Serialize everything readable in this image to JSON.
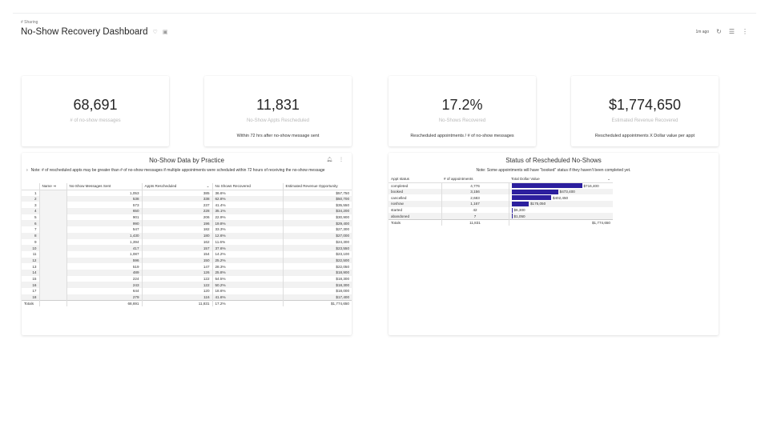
{
  "header": {
    "breadcrumb": "# Sharing",
    "title": "No-Show Recovery Dashboard",
    "updated": "1m ago"
  },
  "kpis": [
    {
      "value": "68,691",
      "label": "# of no-show messages",
      "sub": ""
    },
    {
      "value": "11,831",
      "label": "No-Show Appts Rescheduled",
      "sub": "Within 72 hrs after no-show message sent"
    },
    {
      "value": "17.2%",
      "label": "No-Shows Recovered",
      "sub": "Rescheduled appointments / # of no-show messages"
    },
    {
      "value": "$1,774,650",
      "label": "Estimated Revenue Recovered",
      "sub": "Rescheduled appointments X Dollar value per appt"
    }
  ],
  "practice_table": {
    "title": "No-Show Data by Practice",
    "note": "Note: # of rescheduled appts may be greater than # of no-show messages if multiple appointments were scheduled within 72 hours of receiving the no-show message",
    "columns": [
      "Name",
      "No-Show Messages Sent",
      "Appts Rescheduled",
      "No Shows Recovered",
      "Estimated Revenue Opportunity"
    ],
    "rows": [
      [
        "1",
        "1,053",
        "385",
        "36.6%",
        "$57,750"
      ],
      [
        "2",
        "538",
        "338",
        "62.8%",
        "$50,700"
      ],
      [
        "3",
        "573",
        "237",
        "41.4%",
        "$35,550"
      ],
      [
        "4",
        "650",
        "228",
        "35.1%",
        "$34,200"
      ],
      [
        "5",
        "901",
        "206",
        "22.9%",
        "$30,900"
      ],
      [
        "6",
        "990",
        "196",
        "19.8%",
        "$29,400"
      ],
      [
        "7",
        "547",
        "182",
        "33.3%",
        "$27,300"
      ],
      [
        "8",
        "1,430",
        "180",
        "12.6%",
        "$27,000"
      ],
      [
        "9",
        "1,394",
        "162",
        "11.6%",
        "$24,300"
      ],
      [
        "10",
        "417",
        "157",
        "37.6%",
        "$23,550"
      ],
      [
        "11",
        "1,087",
        "154",
        "14.2%",
        "$23,100"
      ],
      [
        "12",
        "596",
        "150",
        "25.2%",
        "$22,500"
      ],
      [
        "13",
        "519",
        "147",
        "28.3%",
        "$22,050"
      ],
      [
        "14",
        "489",
        "126",
        "25.8%",
        "$18,900"
      ],
      [
        "15",
        "224",
        "122",
        "54.5%",
        "$18,300"
      ],
      [
        "16",
        "243",
        "122",
        "50.2%",
        "$18,300"
      ],
      [
        "17",
        "644",
        "120",
        "18.6%",
        "$18,000"
      ],
      [
        "18",
        "279",
        "116",
        "41.6%",
        "$17,400"
      ]
    ],
    "totals": {
      "label": "Totals",
      "sent": "68,691",
      "rescheduled": "11,831",
      "recovered": "17.2%",
      "revenue": "$1,774,650"
    }
  },
  "status_table": {
    "title": "Status of Rescheduled No-Shows",
    "note": "Note: Some appointments will have \"booked\" status if they haven't been completed yet.",
    "columns": [
      "Appt status",
      "# of appointments",
      "Total Dollar Value"
    ],
    "bar_color": "#2c1f9e",
    "rows": [
      {
        "status": "completed",
        "count": "4,776",
        "value": "$716,400",
        "amount": 716400
      },
      {
        "status": "booked",
        "count": "3,156",
        "value": "$473,400",
        "amount": 473400
      },
      {
        "status": "cancelled",
        "count": "2,683",
        "value": "$402,450",
        "amount": 402450
      },
      {
        "status": "noshow",
        "count": "1,167",
        "value": "$175,050",
        "amount": 175050
      },
      {
        "status": "started",
        "count": "42",
        "value": "$6,300",
        "amount": 6300
      },
      {
        "status": "abandoned",
        "count": "7",
        "value": "$1,050",
        "amount": 1050
      }
    ],
    "totals": {
      "label": "Totals",
      "count": "11,831",
      "value": "$1,774,650"
    }
  }
}
